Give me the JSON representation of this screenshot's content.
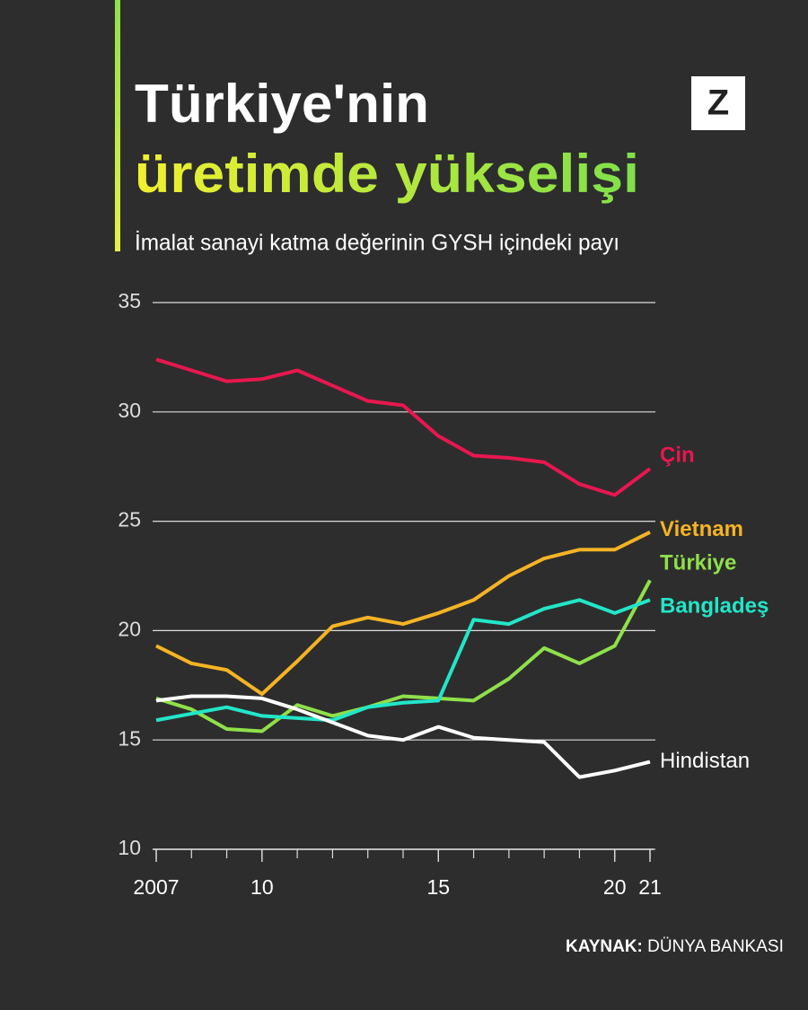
{
  "chart_data": {
    "type": "line",
    "title": [
      "Türkiye'nin",
      "üretimde yükselişi"
    ],
    "subtitle": "İmalat sanayi katma değerinin GYSH içindeki payı",
    "logo": "Z",
    "x": [
      2007,
      2008,
      2009,
      2010,
      2011,
      2012,
      2013,
      2014,
      2015,
      2016,
      2017,
      2018,
      2019,
      2020,
      2021
    ],
    "series": [
      {
        "name": "Çin",
        "color": "#e8174f",
        "values": [
          32.4,
          31.9,
          31.4,
          31.5,
          31.9,
          31.2,
          30.5,
          30.3,
          28.9,
          28.0,
          27.9,
          27.7,
          26.7,
          26.2,
          27.4
        ]
      },
      {
        "name": "Vietnam",
        "color": "#f5b324",
        "values": [
          19.3,
          18.5,
          18.2,
          17.1,
          18.6,
          20.2,
          20.6,
          20.3,
          20.8,
          21.4,
          22.5,
          23.3,
          23.7,
          23.7,
          24.5
        ]
      },
      {
        "name": "Türkiye",
        "color": "#8fe04a",
        "values": [
          16.9,
          16.4,
          15.5,
          15.4,
          16.6,
          16.1,
          16.5,
          17.0,
          16.9,
          16.8,
          17.8,
          19.2,
          18.5,
          19.3,
          22.3
        ]
      },
      {
        "name": "Bangladeş",
        "color": "#22e6c8",
        "values": [
          15.9,
          16.2,
          16.5,
          16.1,
          16.0,
          15.9,
          16.5,
          16.7,
          16.8,
          20.5,
          20.3,
          21.0,
          21.4,
          20.8,
          21.4
        ]
      },
      {
        "name": "Hindistan",
        "color": "#ffffff",
        "values": [
          16.8,
          17.0,
          17.0,
          16.9,
          16.4,
          15.8,
          15.2,
          15.0,
          15.6,
          15.1,
          15.0,
          14.9,
          13.3,
          13.6,
          14.0
        ]
      }
    ],
    "xlim": [
      2007,
      2021
    ],
    "xticks": [
      2007,
      {
        "value": 2010,
        "label": "10"
      },
      {
        "value": 2015,
        "label": "15"
      },
      {
        "value": 2020,
        "label": "20"
      },
      {
        "value": 2021,
        "label": "21"
      }
    ],
    "ylim": [
      10,
      35
    ],
    "yticks": [
      10,
      15,
      20,
      25,
      30,
      35
    ],
    "grid": true,
    "source_label": "KAYNAK:",
    "source": "DÜNYA BANKASI"
  }
}
